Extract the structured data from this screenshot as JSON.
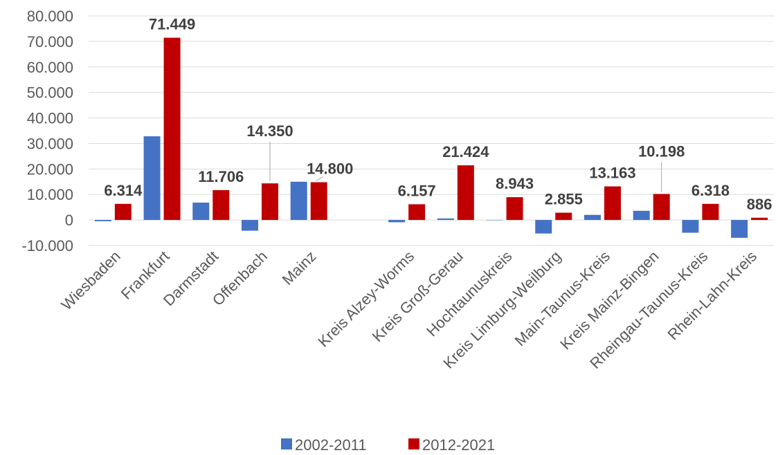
{
  "chart_data": {
    "type": "bar",
    "title": "",
    "xlabel": "",
    "ylabel": "",
    "categories": [
      "Wiesbaden",
      "Frankfurt",
      "Darmstadt",
      "Offenbach",
      "Mainz",
      "",
      "Kreis Alzey-Worms",
      "Kreis Groß-Gerau",
      "Hochtaunuskreis",
      "Kreis Limburg-Weilburg",
      "Main-Taunus-Kreis",
      "Kreis Mainz-Bingen",
      "Rheingau-Taunus-Kreis",
      "Rhein-Lahn-Kreis"
    ],
    "series": [
      {
        "name": "2002-2011",
        "color": "#4472C4",
        "values": [
          -500,
          32800,
          6800,
          -4200,
          15000,
          null,
          -900,
          600,
          0,
          -5300,
          2000,
          3600,
          -5000,
          -7000
        ]
      },
      {
        "name": "2012-2021",
        "color": "#C00000",
        "values": [
          6314,
          71449,
          11706,
          14350,
          14800,
          null,
          6157,
          21424,
          8943,
          2855,
          13163,
          10198,
          6318,
          886
        ]
      }
    ],
    "data_labels": [
      "6.314",
      "71.449",
      "11.706",
      "14.350",
      "14.800",
      "",
      "6.157",
      "21.424",
      "8.943",
      "2.855",
      "13.163",
      "10.198",
      "6.318",
      "886"
    ],
    "ylim": [
      -10000,
      80000
    ],
    "yticks": [
      80000,
      70000,
      60000,
      50000,
      40000,
      30000,
      20000,
      10000,
      0,
      -10000
    ],
    "ytick_labels": [
      "80.000",
      "70.000",
      "60.000",
      "50.000",
      "40.000",
      "30.000",
      "20.000",
      "10.000",
      "0",
      "-10.000"
    ],
    "grid": true,
    "legend_position": "bottom"
  }
}
